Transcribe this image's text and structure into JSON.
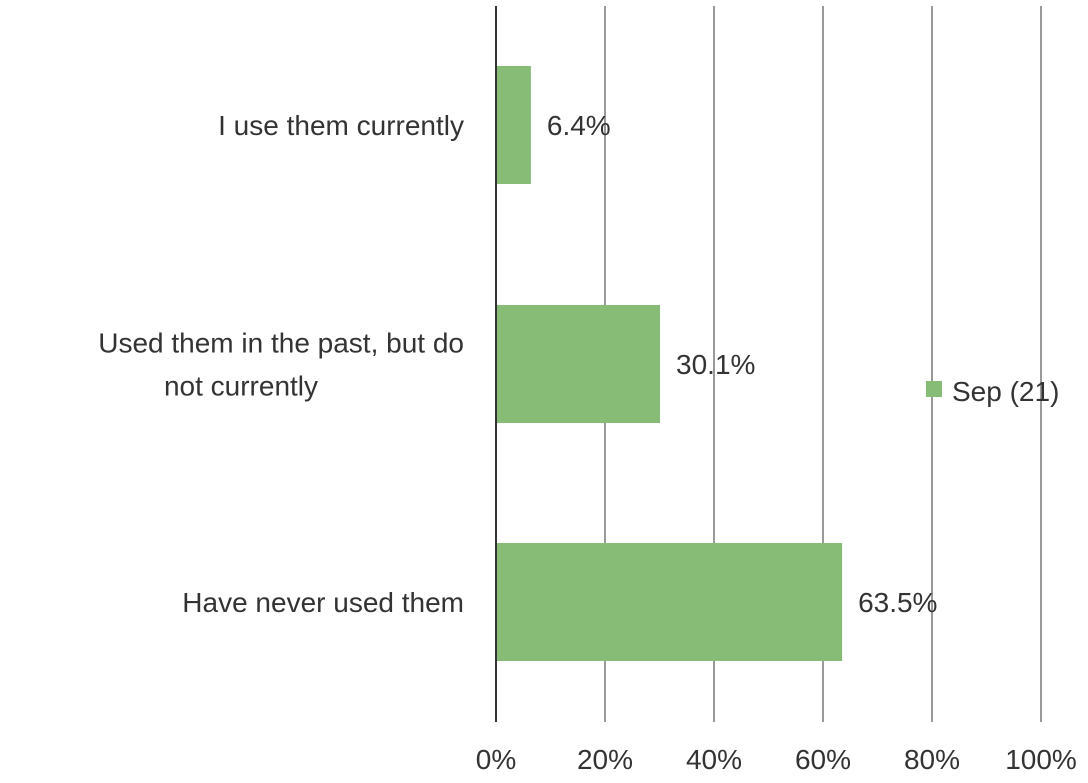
{
  "chart_data": {
    "type": "bar",
    "orientation": "horizontal",
    "categories": [
      [
        "I use them currently"
      ],
      [
        "Used them in the past, but do",
        "not currently"
      ],
      [
        "Have never used them"
      ]
    ],
    "series": [
      {
        "name": "Sep (21)",
        "values": [
          6.4,
          30.1,
          63.5
        ],
        "color": "#86bc76"
      }
    ],
    "data_labels": [
      "6.4%",
      "30.1%",
      "63.5%"
    ],
    "xlim": [
      0,
      100
    ],
    "x_ticks": [
      0,
      20,
      40,
      60,
      80,
      100
    ],
    "x_tick_labels": [
      "0%",
      "20%",
      "40%",
      "60%",
      "80%",
      "100%"
    ],
    "grid": true,
    "legend_position": "right",
    "colors": {
      "bar": "#86bc76",
      "grid": "#9a9a9a",
      "axis": "#333333",
      "text": "#333333"
    }
  }
}
